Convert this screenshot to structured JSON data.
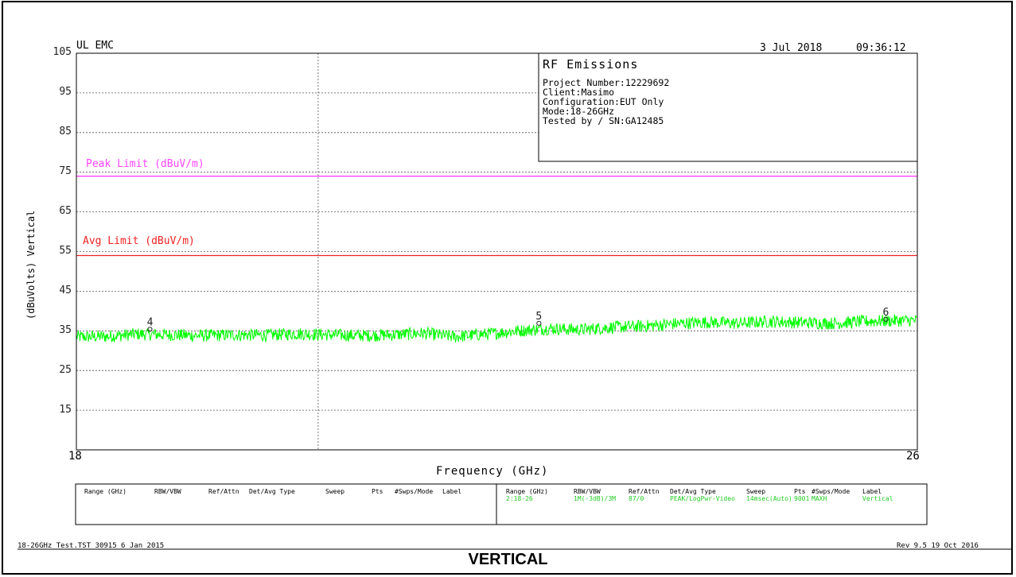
{
  "header": {
    "left": "UL EMC",
    "date": "3 Jul 2018",
    "time": "09:36:12"
  },
  "info_box": {
    "title": "RF Emissions",
    "lines": [
      "Project Number:12229692",
      "Client:Masimo",
      "Configuration:EUT Only",
      "Mode:18-26GHz",
      "Tested by / SN:GA12485"
    ]
  },
  "limits": [
    {
      "label": "Peak Limit (dBuV/m)",
      "value": 74,
      "color": "#ff44ff"
    },
    {
      "label": "Avg Limit (dBuV/m)",
      "value": 54,
      "color": "#ee2222"
    }
  ],
  "chart_data": {
    "type": "line",
    "xlabel": "Frequency (GHz)",
    "ylabel": "(dBuVolts) Vertical",
    "xlim": [
      18,
      26
    ],
    "ylim": [
      5,
      105
    ],
    "x_tick_labels": [
      "18",
      "26"
    ],
    "y_ticks": [
      15,
      25,
      35,
      45,
      55,
      65,
      75,
      85,
      95,
      105
    ],
    "vertical_gridline_x": 20.3,
    "grid": true,
    "series": [
      {
        "color": "#00ff00",
        "x": [
          18.0,
          18.3,
          18.6,
          18.9,
          19.2,
          19.5,
          19.8,
          20.1,
          20.4,
          20.7,
          21.0,
          21.3,
          21.6,
          21.9,
          22.2,
          22.5,
          22.8,
          23.1,
          23.4,
          23.7,
          24.0,
          24.3,
          24.6,
          24.9,
          25.2,
          25.5,
          25.8,
          26.0
        ],
        "values": [
          33.5,
          33.6,
          34.2,
          34.0,
          33.8,
          34.0,
          33.9,
          34.3,
          34.0,
          33.8,
          34.0,
          34.4,
          33.5,
          34.2,
          35.0,
          35.6,
          35.3,
          35.9,
          36.2,
          36.8,
          37.2,
          36.9,
          37.4,
          37.1,
          36.9,
          37.4,
          37.6,
          37.6
        ]
      }
    ],
    "markers": [
      {
        "label": "4",
        "x": 18.7,
        "y": 35.0
      },
      {
        "label": "5",
        "x": 22.4,
        "y": 36.5
      },
      {
        "label": "6",
        "x": 25.7,
        "y": 37.5
      }
    ]
  },
  "settings_table": {
    "headers": [
      "Range (GHz)",
      "RBW/VBW",
      "Ref/Attn",
      "Det/Avg Type",
      "Sweep",
      "Pts",
      "#Swps/Mode",
      "Label"
    ],
    "row": [
      "2:18-26",
      "1M(-3dB)/3M",
      "87/0",
      "PEAK/LogPwr-Video",
      "14msec(Auto)",
      "9001",
      "MAXH",
      "Vertical"
    ]
  },
  "footer": {
    "left": "18-26GHz Test.TST 30915  6 Jan 2015",
    "right": "Rev 9.5 19 Oct 2016"
  },
  "caption": "VERTICAL"
}
